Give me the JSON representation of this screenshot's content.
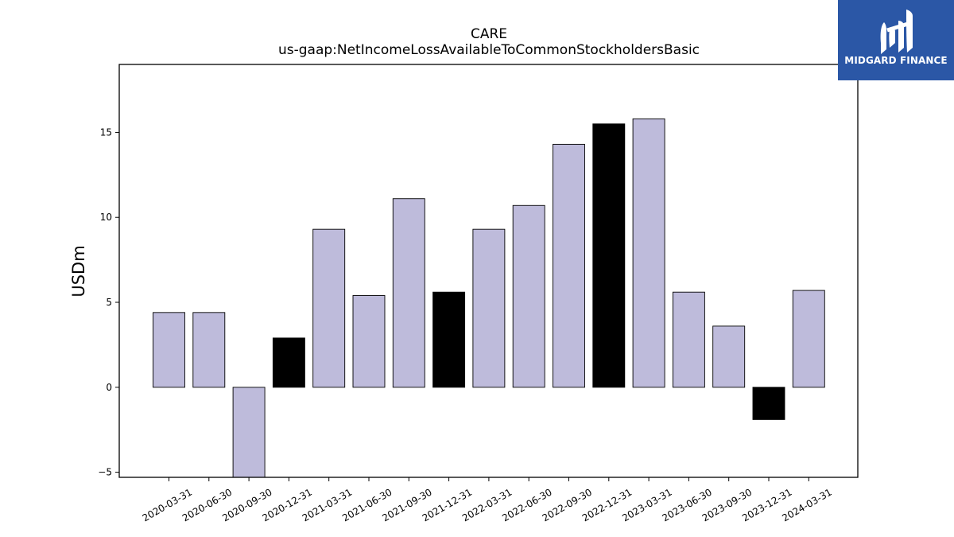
{
  "logo": {
    "text": "MIDGARD FINANCE",
    "icon": "midgard-logo-icon",
    "background": "#2b57a6"
  },
  "chart_data": {
    "type": "bar",
    "title": "CARE",
    "subtitle": "us-gaap:NetIncomeLossAvailableToCommonStockholdersBasic",
    "xlabel": "",
    "ylabel": "USDm",
    "ylim": [
      -5.3,
      19
    ],
    "yticks": [
      -5,
      0,
      5,
      10,
      15
    ],
    "grid": false,
    "categories": [
      "2020-03-31",
      "2020-06-30",
      "2020-09-30",
      "2020-12-31",
      "2021-03-31",
      "2021-06-30",
      "2021-09-30",
      "2021-12-31",
      "2022-03-31",
      "2022-06-30",
      "2022-09-30",
      "2022-12-31",
      "2023-03-31",
      "2023-06-30",
      "2023-09-30",
      "2023-12-31",
      "2024-03-31"
    ],
    "values": [
      4.4,
      4.4,
      -5.5,
      2.9,
      9.3,
      5.4,
      11.1,
      5.6,
      9.3,
      10.7,
      14.3,
      15.5,
      15.8,
      5.6,
      3.6,
      -1.9,
      5.7
    ],
    "highlight": [
      false,
      false,
      false,
      true,
      false,
      false,
      false,
      true,
      false,
      false,
      false,
      true,
      false,
      false,
      false,
      true,
      false
    ],
    "colors": {
      "normal": "#bebbdb",
      "highlight": "#000000",
      "edge": "#000000"
    }
  }
}
